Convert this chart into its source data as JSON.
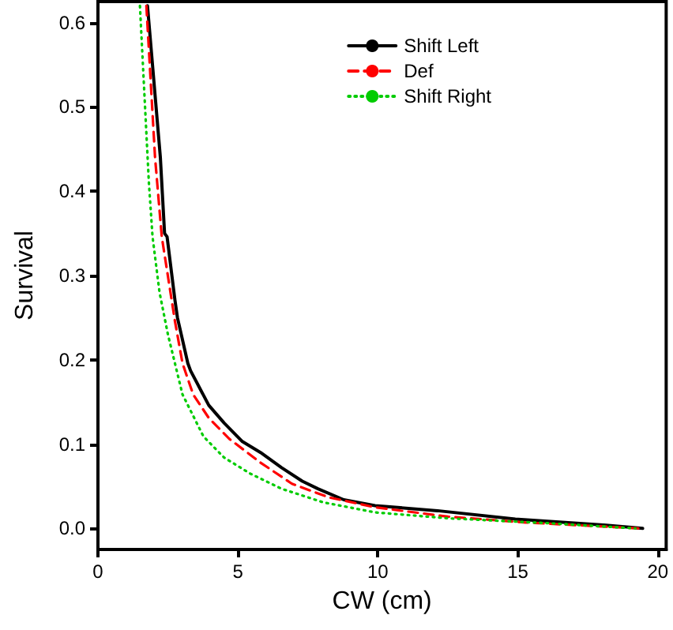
{
  "chart_data": {
    "type": "line",
    "xlabel": "CW (cm)",
    "ylabel": "Survival",
    "xlim": [
      0,
      20.3
    ],
    "ylim": [
      -0.025,
      0.625
    ],
    "xticks": [
      0,
      5,
      10,
      15,
      20
    ],
    "yticks": [
      {
        "value": 0,
        "label": "0.0"
      },
      {
        "value": 0.1,
        "label": "0.1"
      },
      {
        "value": 0.2,
        "label": "0.2"
      },
      {
        "value": 0.3,
        "label": "0.3"
      },
      {
        "value": 0.4,
        "label": "0.4"
      },
      {
        "value": 0.5,
        "label": "0.5"
      },
      {
        "value": 0.6,
        "label": "0.6"
      }
    ],
    "grid": false,
    "legend": "top right",
    "marker": "none",
    "series": [
      {
        "name": "Shift Left",
        "color": "#000000",
        "line_style": "solid",
        "x": [
          1.77,
          2.23,
          2.38,
          2.47,
          2.75,
          2.84,
          3.21,
          3.31,
          3.96,
          4.51,
          5.16,
          5.81,
          6.56,
          7.3,
          7.86,
          8.78,
          9.9,
          12.13,
          14.91,
          18.07,
          19.46
        ],
        "values": [
          0.62,
          0.44,
          0.35,
          0.346,
          0.271,
          0.25,
          0.196,
          0.187,
          0.146,
          0.125,
          0.103,
          0.09,
          0.072,
          0.056,
          0.047,
          0.034,
          0.027,
          0.021,
          0.011,
          0.004,
          0
        ]
      },
      {
        "name": "Def",
        "color": "#ff0000",
        "line_style": "dashed",
        "x": [
          1.73,
          2.04,
          2.28,
          2.75,
          3.02,
          3.4,
          3.96,
          4.7,
          5.81,
          6.93,
          8.23,
          9.9,
          12.5,
          15.28,
          19.35
        ],
        "values": [
          0.62,
          0.44,
          0.346,
          0.246,
          0.196,
          0.159,
          0.131,
          0.106,
          0.078,
          0.053,
          0.037,
          0.025,
          0.014,
          0.007,
          0
        ]
      },
      {
        "name": "Shift Right",
        "color": "#00cc00",
        "line_style": "dotted",
        "x": [
          1.5,
          1.82,
          1.95,
          2.2,
          2.5,
          3.02,
          3.77,
          4.51,
          5.44,
          6.56,
          8.04,
          9.9,
          12.5,
          16.2,
          19.2
        ],
        "values": [
          0.62,
          0.41,
          0.346,
          0.28,
          0.23,
          0.159,
          0.109,
          0.084,
          0.065,
          0.047,
          0.031,
          0.019,
          0.012,
          0.006,
          0
        ]
      }
    ]
  }
}
